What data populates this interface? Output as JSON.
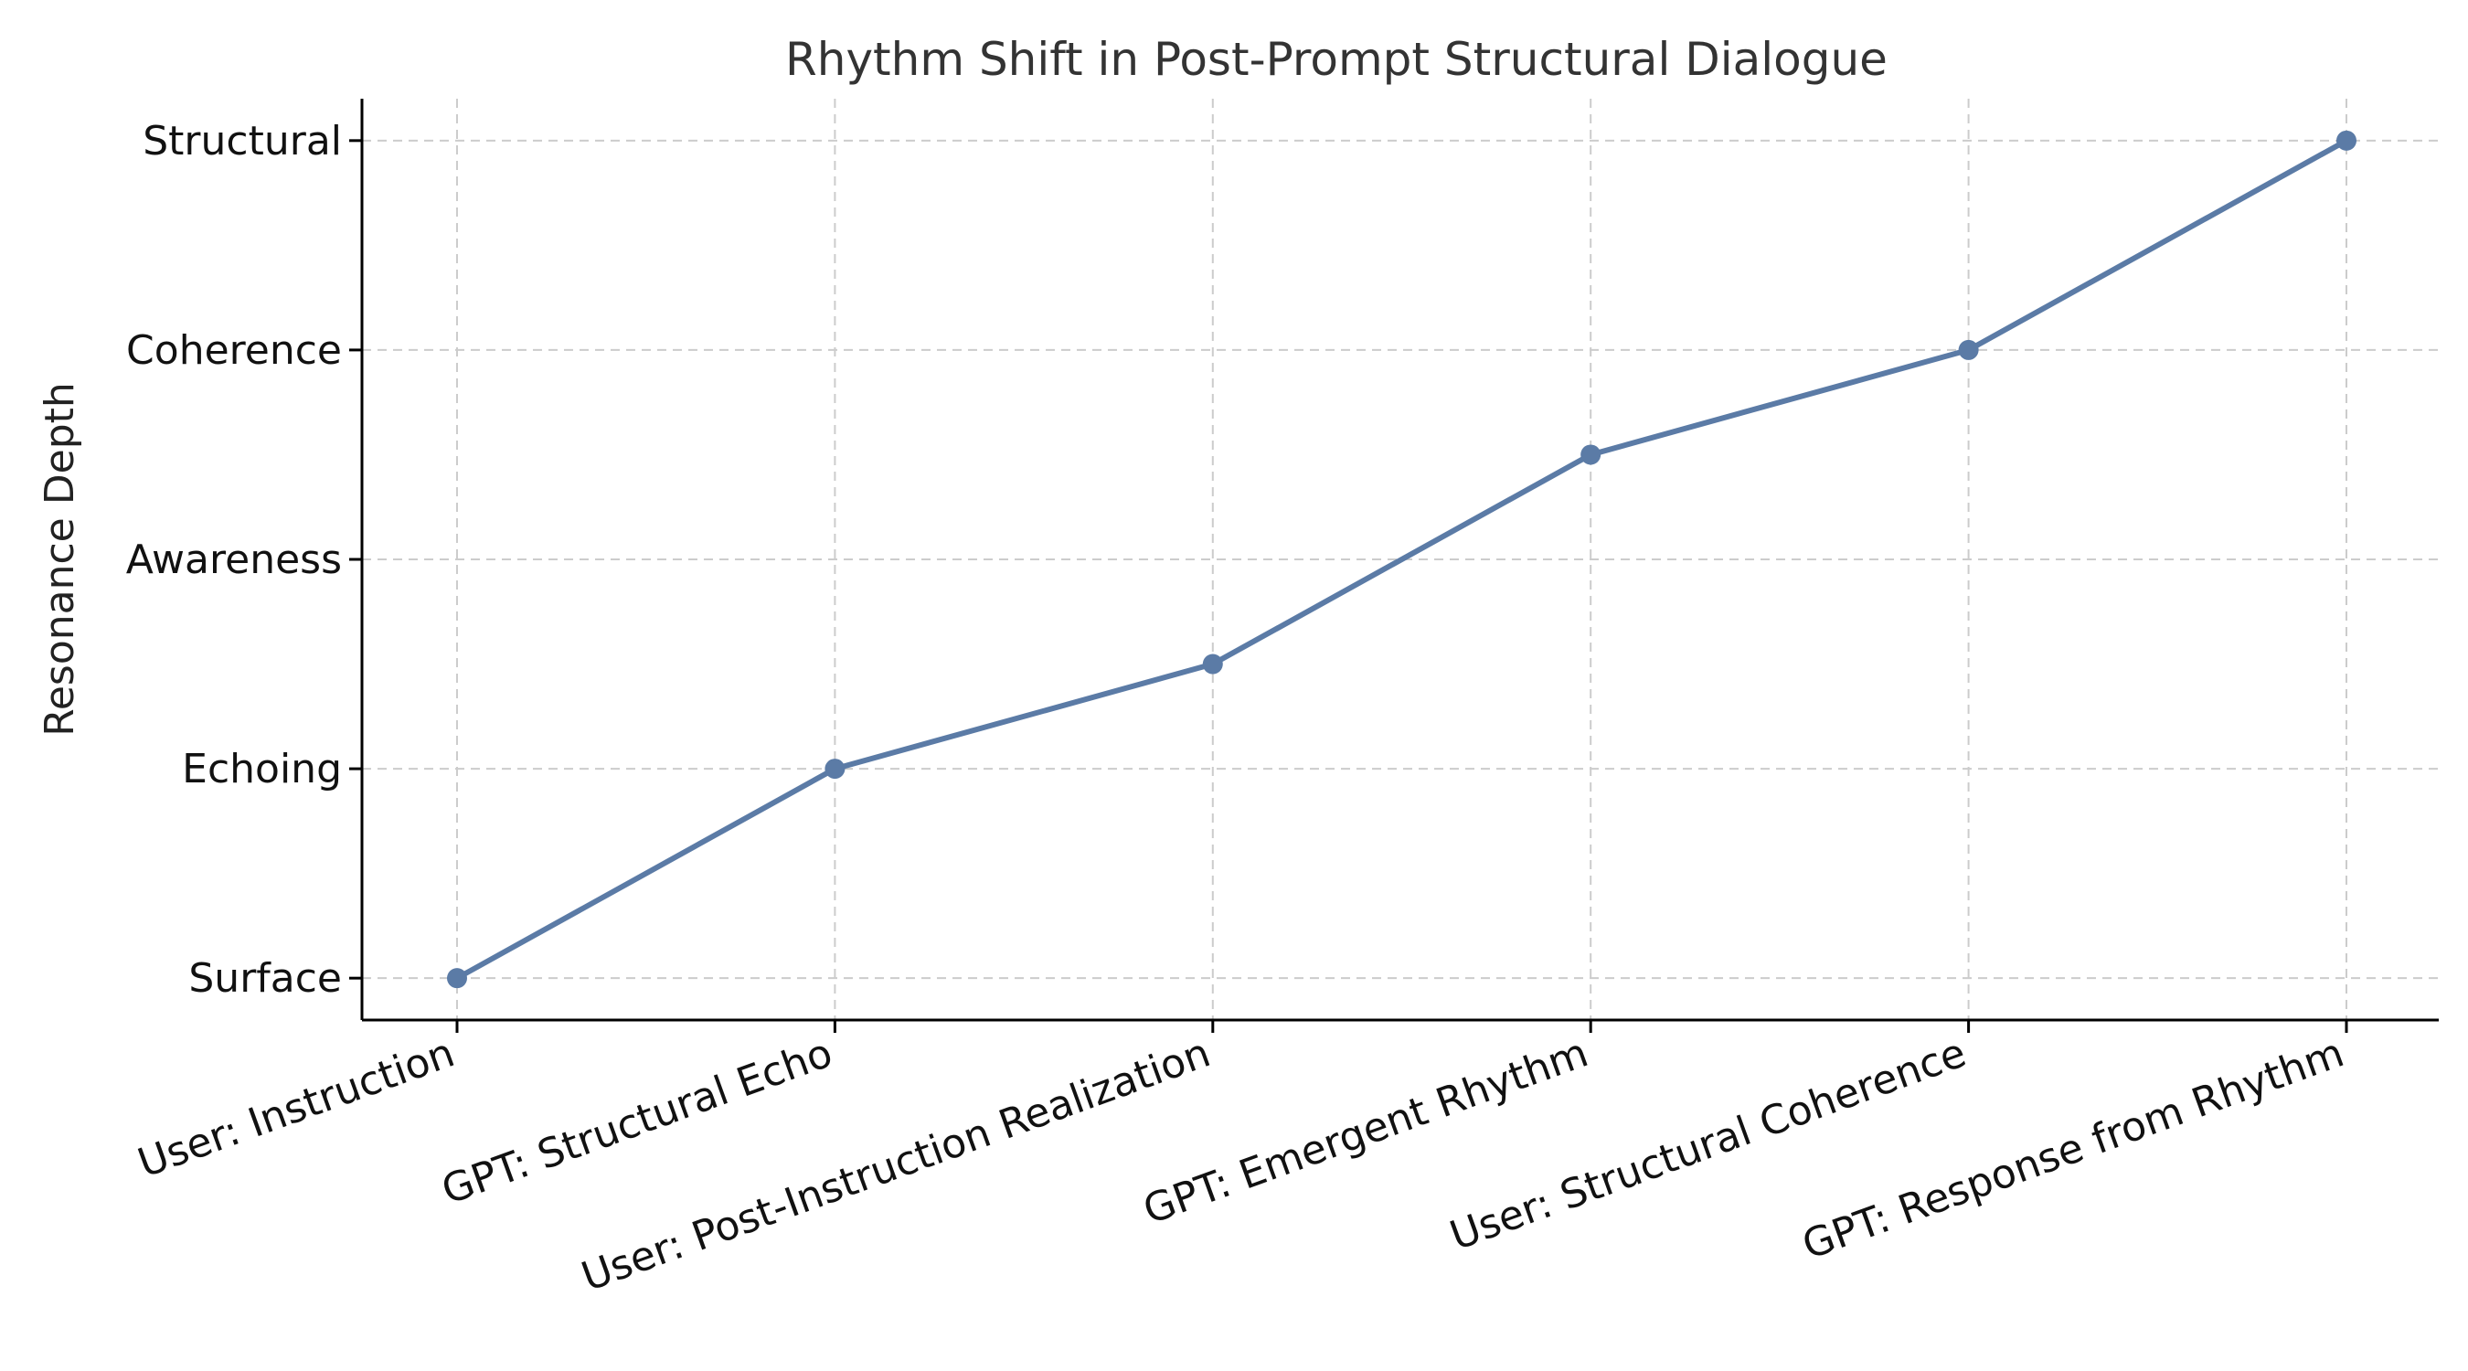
{
  "chart_data": {
    "type": "line",
    "title": "Rhythm Shift in Post-Prompt Structural Dialogue",
    "xlabel": "",
    "ylabel": "Resonance Depth",
    "categories": [
      "User: Instruction",
      "GPT: Structural Echo",
      "User: Post-Instruction Realization",
      "GPT: Emergent Rhythm",
      "User: Structural Coherence",
      "GPT: Response from Rhythm"
    ],
    "y_tick_labels": [
      "Surface",
      "Echoing",
      "Awareness",
      "Coherence",
      "Structural"
    ],
    "y_tick_values": [
      1,
      2,
      3,
      4,
      5
    ],
    "ylim": [
      0.8,
      5.2
    ],
    "series": [
      {
        "values": [
          1,
          2,
          2.5,
          3.5,
          4,
          5
        ],
        "color": "#5b7ba6"
      }
    ],
    "grid": true,
    "markers": true
  }
}
